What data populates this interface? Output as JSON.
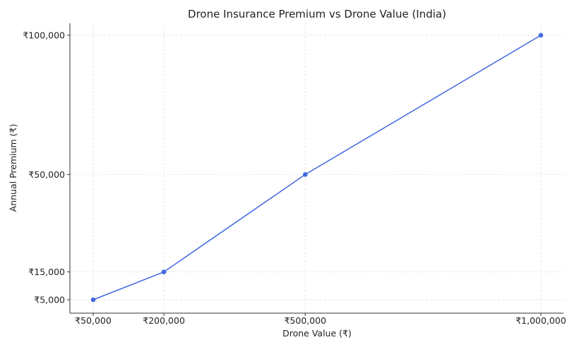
{
  "chart_data": {
    "type": "line",
    "title": "Drone Insurance Premium vs Drone Value (India)",
    "xlabel": "Drone Value (₹)",
    "ylabel": "Annual Premium (₹)",
    "x": [
      50000,
      200000,
      500000,
      1000000
    ],
    "series": [
      {
        "values": [
          5000,
          15000,
          50000,
          100000
        ],
        "color": "#4169e1"
      }
    ],
    "xticks": [
      {
        "value": 50000,
        "label": "₹50,000"
      },
      {
        "value": 200000,
        "label": "₹200,000"
      },
      {
        "value": 500000,
        "label": "₹500,000"
      },
      {
        "value": 1000000,
        "label": "₹1,000,000"
      }
    ],
    "yticks": [
      {
        "value": 5000,
        "label": "₹5,000"
      },
      {
        "value": 15000,
        "label": "₹15,000"
      },
      {
        "value": 50000,
        "label": "₹50,000"
      },
      {
        "value": 100000,
        "label": "₹100,000"
      }
    ],
    "grid": true,
    "grid_style": "dashed",
    "colors": {
      "line": "#4169e1",
      "grid": "#dddddd",
      "axis": "#333333"
    }
  }
}
